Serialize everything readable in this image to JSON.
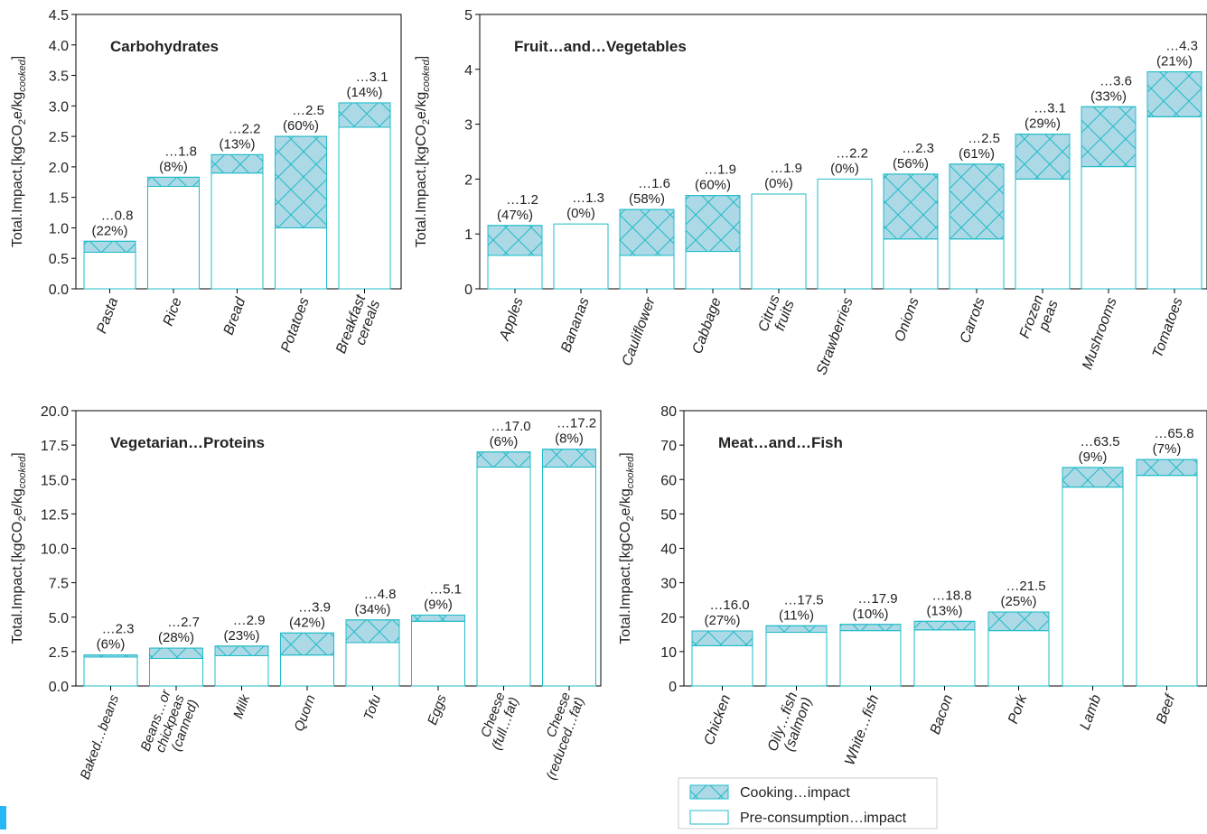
{
  "legend": {
    "cooking_label": "Cooking…impact",
    "pre_label": "Pre-consumption…impact"
  },
  "colors": {
    "bar_stroke": "#1fbcc8",
    "cooking_fill": "#add8e6",
    "pre_fill": "#ffffff",
    "axis": "#000000",
    "accent": "#29b6f6"
  },
  "chart_data": [
    {
      "type": "bar",
      "title": "Carbohydrates",
      "ylabel": "Total.Impact.[kgCO2e/kgcooked]",
      "ylim": [
        0,
        4.5
      ],
      "yticks": [
        "0.0",
        "0.5",
        "1.0",
        "1.5",
        "2.0",
        "2.5",
        "3.0",
        "3.5",
        "4.0",
        "4.5"
      ],
      "categories": [
        [
          "Pasta"
        ],
        [
          "Rice"
        ],
        [
          "Bread"
        ],
        [
          "Potatoes"
        ],
        [
          "Breakfast",
          "cereals"
        ]
      ],
      "series": [
        {
          "name": "Pre-consumption…impact",
          "values": [
            0.6,
            1.68,
            1.9,
            1.0,
            2.65
          ]
        },
        {
          "name": "Cooking…impact",
          "values": [
            0.18,
            0.15,
            0.3,
            1.5,
            0.4
          ]
        }
      ],
      "totals": [
        "…0.8",
        "…1.8",
        "…2.2",
        "…2.5",
        "…3.1"
      ],
      "percents": [
        "(22%)",
        "(8%)",
        "(13%)",
        "(60%)",
        "(14%)"
      ]
    },
    {
      "type": "bar",
      "title": "Fruit…and…Vegetables",
      "ylabel": "Total.Impact.[kgCO2e/kgcooked]",
      "ylim": [
        0,
        5.5
      ],
      "yticks": [
        "0",
        "1",
        "2",
        "3",
        "4",
        "5"
      ],
      "categories": [
        [
          "Apples"
        ],
        [
          "Bananas"
        ],
        [
          "Cauliflower"
        ],
        [
          "Cabbage"
        ],
        [
          "Citrus",
          "fruits"
        ],
        [
          "Strawberries"
        ],
        [
          "Onions"
        ],
        [
          "Carrots"
        ],
        [
          "Frozen",
          "peas"
        ],
        [
          "Mushrooms"
        ],
        [
          "Tomatoes"
        ]
      ],
      "series": [
        {
          "name": "Pre-consumption…impact",
          "values": [
            0.67,
            1.3,
            0.67,
            0.75,
            1.9,
            2.2,
            1.0,
            1.0,
            2.2,
            2.45,
            3.45
          ]
        },
        {
          "name": "Cooking…impact",
          "values": [
            0.6,
            0.0,
            0.92,
            1.12,
            0.0,
            0.0,
            1.3,
            1.5,
            0.9,
            1.2,
            0.9
          ]
        }
      ],
      "totals": [
        "…1.2",
        "…1.3",
        "…1.6",
        "…1.9",
        "…1.9",
        "…2.2",
        "…2.3",
        "…2.5",
        "…3.1",
        "…3.6",
        "…4.3"
      ],
      "percents": [
        "(47%)",
        "(0%)",
        "(58%)",
        "(60%)",
        "(0%)",
        "(0%)",
        "(56%)",
        "(61%)",
        "(29%)",
        "(33%)",
        "(21%)"
      ]
    },
    {
      "type": "bar",
      "title": "Vegetarian…Proteins",
      "ylabel": "Total.Impact.[kgCO2e/kgcooked]",
      "ylim": [
        0,
        20
      ],
      "yticks": [
        "0.0",
        "2.5",
        "5.0",
        "7.5",
        "10.0",
        "12.5",
        "15.0",
        "17.5",
        "20.0"
      ],
      "categories": [
        [
          "Baked…beans"
        ],
        [
          "Beans…or",
          "chickpeas",
          "(canned)"
        ],
        [
          "Milk"
        ],
        [
          "Quorn"
        ],
        [
          "Tofu"
        ],
        [
          "Eggs"
        ],
        [
          "Cheese",
          "(full…fat)"
        ],
        [
          "Cheese",
          "(reduced…fat)"
        ]
      ],
      "series": [
        {
          "name": "Pre-consumption…impact",
          "values": [
            2.1,
            2.0,
            2.2,
            2.25,
            3.15,
            4.7,
            15.9,
            15.9
          ]
        },
        {
          "name": "Cooking…impact",
          "values": [
            0.15,
            0.75,
            0.7,
            1.6,
            1.65,
            0.45,
            1.1,
            1.3
          ]
        }
      ],
      "totals": [
        "…2.3",
        "…2.7",
        "…2.9",
        "…3.9",
        "…4.8",
        "…5.1",
        "…17.0",
        "…17.2"
      ],
      "percents": [
        "(6%)",
        "(28%)",
        "(23%)",
        "(42%)",
        "(34%)",
        "(9%)",
        "(6%)",
        "(8%)"
      ]
    },
    {
      "type": "bar",
      "title": "Meat…and…Fish",
      "ylabel": "Total.Impact.[kgCO2e/kgcooked]",
      "ylim": [
        0,
        80
      ],
      "yticks": [
        "0",
        "10",
        "20",
        "30",
        "40",
        "50",
        "60",
        "70",
        "80"
      ],
      "categories": [
        [
          "Chicken"
        ],
        [
          "Oily…fish",
          "(salmon)"
        ],
        [
          "White…fish"
        ],
        [
          "Bacon"
        ],
        [
          "Pork"
        ],
        [
          "Lamb"
        ],
        [
          "Beef"
        ]
      ],
      "series": [
        {
          "name": "Pre-consumption…impact",
          "values": [
            11.7,
            15.6,
            16.1,
            16.3,
            16.1,
            57.8,
            61.2
          ]
        },
        {
          "name": "Cooking…impact",
          "values": [
            4.3,
            1.9,
            1.8,
            2.5,
            5.4,
            5.7,
            4.6
          ]
        }
      ],
      "totals": [
        "…16.0",
        "…17.5",
        "…17.9",
        "…18.8",
        "…21.5",
        "…63.5",
        "…65.8"
      ],
      "percents": [
        "(27%)",
        "(11%)",
        "(10%)",
        "(13%)",
        "(25%)",
        "(9%)",
        "(7%)"
      ]
    }
  ]
}
